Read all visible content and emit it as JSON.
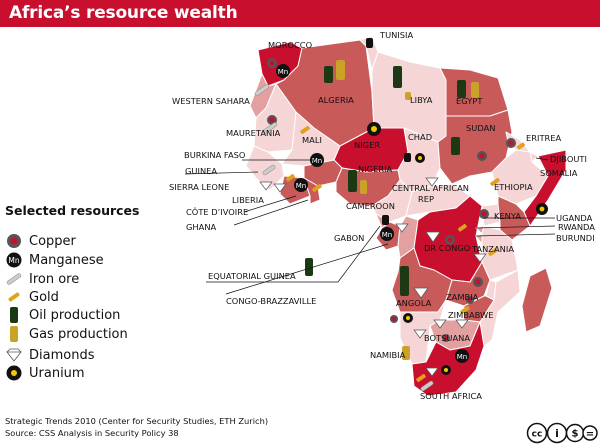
{
  "title": "Africa’s resource wealth",
  "legend": {
    "title": "Selected resources",
    "items": [
      {
        "icon": "copper-icon",
        "label": "Copper"
      },
      {
        "icon": "manganese-icon",
        "label": "Manganese"
      },
      {
        "icon": "iron-ore-icon",
        "label": "Iron ore"
      },
      {
        "icon": "gold-icon",
        "label": "Gold"
      },
      {
        "icon": "oil-production-icon",
        "label": "Oil production"
      },
      {
        "icon": "gas-production-icon",
        "label": "Gas production"
      },
      {
        "icon": "diamonds-icon",
        "label": "Diamonds"
      },
      {
        "icon": "uranium-icon",
        "label": "Uranium"
      }
    ]
  },
  "countries": {
    "morocco": "MOROCCO",
    "tunisia": "TUNISIA",
    "western_sahara": "WESTERN SAHARA",
    "algeria": "ALGERIA",
    "libya": "LIBYA",
    "egypt": "EGYPT",
    "mauretania": "MAURETANIA",
    "mali": "MALI",
    "niger": "NIGER",
    "chad": "CHAD",
    "sudan": "SUDAN",
    "eritrea": "ERITREA",
    "burkina_faso": "BURKINA FASO",
    "djibouti": "DJIBOUTI",
    "guinea": "GUINEA",
    "sierra_leone": "SIERRA LEONE",
    "nigeria": "NIGERIA",
    "car_line1": "CENTRAL AFRICAN",
    "car_line2": "REP",
    "ethiopia": "ETHIOPIA",
    "somalia": "SOMALIA",
    "liberia": "LIBERIA",
    "cameroon": "CAMEROON",
    "cote_divoire": "CÔTE D’IVOIRE",
    "uganda": "UGANDA",
    "kenya": "KENYA",
    "rwanda": "RWANDA",
    "ghana": "GHANA",
    "gabon": "GABON",
    "burundi": "BURUNDI",
    "dr_congo": "DR CONGO",
    "tanzania": "TANZANIA",
    "equatorial_guinea": "EQUATORIAL GUINEA",
    "congo_brazzaville": "CONGO-BRAZZAVILLE",
    "angola": "ANGOLA",
    "zambia": "ZAMBIA",
    "zimbabwe": "ZIMBABWE",
    "botsuana": "BOTSUANA",
    "namibia": "NAMIBIA",
    "south_africa": "SOUTH AFRICA"
  },
  "footer": {
    "line1": "Strategic Trends 2010 (Center for Security Studies, ETH Zurich)",
    "line2": "Source: CSS Analysis in Security Policy 38"
  },
  "icon_glyphs": {
    "manganese": "Mn"
  },
  "license_badge": {
    "cc": "cc",
    "by": "i",
    "nc": "$",
    "nd": "="
  },
  "colors": {
    "title_bar": "#c8102e",
    "high": "#c8102e",
    "mid": "#c85a5a",
    "low": "#e3a0a0",
    "pale": "#f5d5d5",
    "ocean": "#ffffff"
  }
}
